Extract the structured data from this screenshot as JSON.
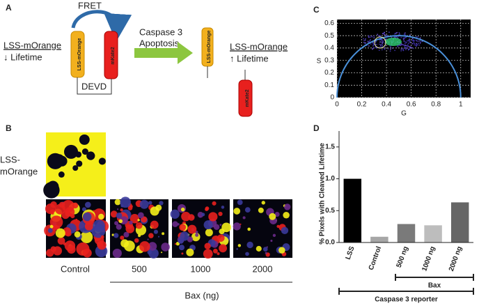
{
  "panel_labels": [
    "A",
    "B",
    "C",
    "D"
  ],
  "diagram": {
    "fret": "FRET",
    "donor": "LSS-mOrange",
    "acceptor": "mKate2",
    "linker": "DEVD",
    "left_label": "LSS-mOrange",
    "left_effect": "↓ Lifetime",
    "step_line1": "Caspase 3",
    "step_line2": "Apoptosis",
    "cleaved_donor": "LSS-mOrange",
    "cleaved_acceptor": "mKate2",
    "right_label": "LSS-mOrange",
    "right_effect": "↑ Lifetime"
  },
  "images": {
    "row_label_line1": "LSS-",
    "row_label_line2": "mOrange",
    "conditions": [
      "Control",
      "500",
      "1000",
      "2000"
    ],
    "axis_label": "Bax (ng)"
  },
  "chart_data": [
    {
      "type": "phasor",
      "xlabel": "G",
      "ylabel": "S",
      "xlim": [
        0,
        1.08
      ],
      "ylim": [
        0,
        0.63
      ],
      "xticks": [
        0,
        0.2,
        0.4,
        0.6,
        0.8,
        1
      ],
      "yticks": [
        0,
        0.1,
        0.2,
        0.3,
        0.4,
        0.5,
        0.6
      ],
      "grid": true
    },
    {
      "type": "bar",
      "ylabel": "% Pixels with Cleaved Lifetime",
      "categories": [
        "LSS",
        "Control",
        "500 ng",
        "1000 ng",
        "2000 ng"
      ],
      "values": [
        1.0,
        0.09,
        0.29,
        0.27,
        0.63
      ],
      "colors": [
        "#000000",
        "#a6a6a6",
        "#7a7a7a",
        "#bdbdbd",
        "#666666"
      ],
      "ylim": [
        0,
        1.75
      ],
      "yticks": [
        {
          "value": 0,
          "label": "0.0"
        },
        {
          "value": 0.5,
          "label": "0.5"
        },
        {
          "value": 1,
          "label": "1.0"
        },
        {
          "value": 1.5,
          "label": "1.5"
        }
      ],
      "brackets": [
        "Bax",
        "Caspase 3 reporter"
      ]
    }
  ]
}
